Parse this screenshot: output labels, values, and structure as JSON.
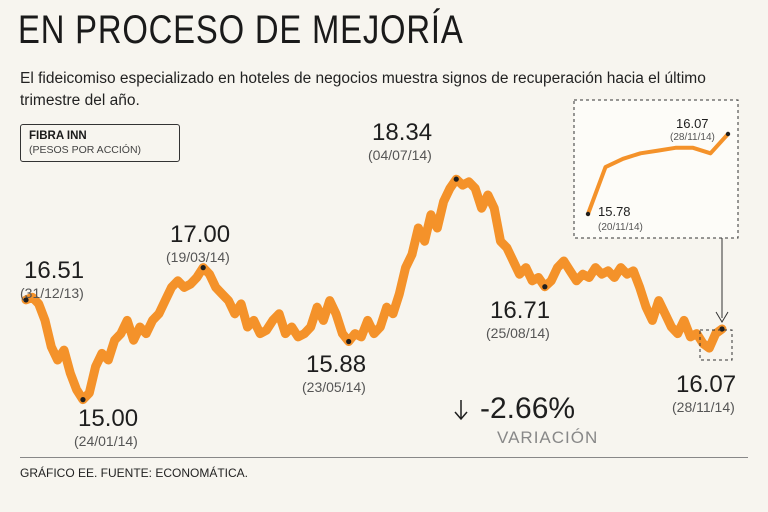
{
  "header": {
    "title": "EN PROCESO DE MEJORÍA",
    "subtitle": "El fideicomiso especializado en hoteles de negocios muestra signos de recuperación hacia el último trimestre del año."
  },
  "legend": {
    "name": "FIBRA INN",
    "unit": "(PESOS POR ACCIÓN)"
  },
  "footer": {
    "source": "GRÁFICO EE. FUENTE: ECONOMÁTICA."
  },
  "colors": {
    "series": "#f4922a",
    "marker": "#1e1e1e"
  },
  "chart_data": {
    "type": "line",
    "title": "FIBRA INN",
    "ylabel": "(PESOS POR ACCIÓN)",
    "xlabel": "",
    "ylim": [
      14.6,
      18.6
    ],
    "xrange": [
      "31/12/13",
      "28/11/14"
    ],
    "grid": false,
    "series": [
      {
        "name": "FIBRA INN",
        "values": [
          16.51,
          16.55,
          16.45,
          16.2,
          15.8,
          15.6,
          15.75,
          15.4,
          15.15,
          15.0,
          15.1,
          15.5,
          15.7,
          15.6,
          15.9,
          16.0,
          16.2,
          15.9,
          16.1,
          16.0,
          16.2,
          16.3,
          16.5,
          16.7,
          16.8,
          16.7,
          16.75,
          16.85,
          17.0,
          16.9,
          16.7,
          16.6,
          16.5,
          16.3,
          16.45,
          16.1,
          16.2,
          16.0,
          16.05,
          16.2,
          16.3,
          16.0,
          16.1,
          15.95,
          16.0,
          16.1,
          16.4,
          16.2,
          16.5,
          16.3,
          16.0,
          15.88,
          16.0,
          15.95,
          16.2,
          16.0,
          16.1,
          16.4,
          16.3,
          16.6,
          17.0,
          17.2,
          17.6,
          17.4,
          17.8,
          17.6,
          18.0,
          18.2,
          18.34,
          18.25,
          18.3,
          18.2,
          17.9,
          18.1,
          17.9,
          17.4,
          17.3,
          17.1,
          16.9,
          17.0,
          16.8,
          16.85,
          16.71,
          16.8,
          17.0,
          17.1,
          16.95,
          16.8,
          16.9,
          16.85,
          17.0,
          16.9,
          16.95,
          16.85,
          17.0,
          16.9,
          16.95,
          16.7,
          16.4,
          16.2,
          16.5,
          16.3,
          16.1,
          16.0,
          16.2,
          15.95,
          16.0,
          15.85,
          15.78,
          16.0,
          16.07
        ],
        "labeled_points": [
          {
            "value": "16.51",
            "date": "(31/12/13)"
          },
          {
            "value": "15.00",
            "date": "(24/01/14)"
          },
          {
            "value": "17.00",
            "date": "(19/03/14)"
          },
          {
            "value": "15.88",
            "date": "(23/05/14)"
          },
          {
            "value": "18.34",
            "date": "(04/07/14)"
          },
          {
            "value": "16.71",
            "date": "(25/08/14)"
          },
          {
            "value": "16.07",
            "date": "(28/11/14)"
          }
        ]
      }
    ],
    "inset": {
      "description_start_value": "15.78",
      "start_date": "(20/11/14)",
      "end_value": "16.07",
      "end_date": "(28/11/14)",
      "values": [
        15.78,
        15.95,
        15.98,
        16.0,
        16.01,
        16.02,
        16.02,
        16.0,
        16.07
      ]
    },
    "variation": {
      "value": "-2.66%",
      "label": "VARIACIÓN"
    }
  }
}
